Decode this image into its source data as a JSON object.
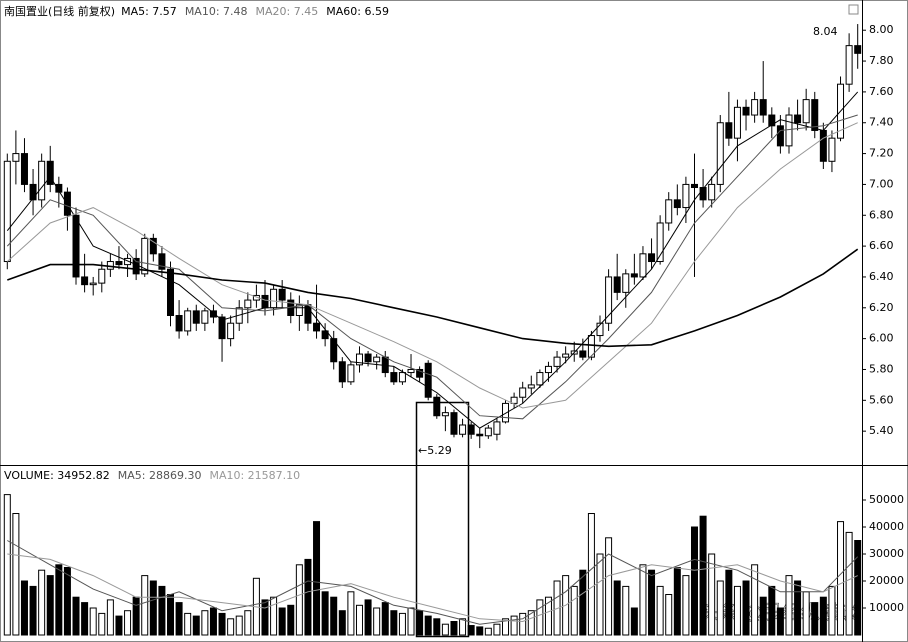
{
  "chart_data": {
    "type": "candlestick",
    "title": "南国置业(日线 前复权)",
    "legend": [
      {
        "label": "MA5: 7.57",
        "color": "#000000"
      },
      {
        "label": "MA10: 7.48",
        "color": "#555555"
      },
      {
        "label": "MA20: 7.45",
        "color": "#888888"
      },
      {
        "label": "MA60: 6.59",
        "color": "#000000"
      }
    ],
    "ylim": [
      5.2,
      8.17
    ],
    "yticks": [
      {
        "value": 5.4,
        "label": "5.40"
      },
      {
        "value": 5.6,
        "label": "5.60"
      },
      {
        "value": 5.8,
        "label": "5.80"
      },
      {
        "value": 6.0,
        "label": "6.00"
      },
      {
        "value": 6.2,
        "label": "6.20"
      },
      {
        "value": 6.4,
        "label": "6.40"
      },
      {
        "value": 6.6,
        "label": "6.60"
      },
      {
        "value": 6.8,
        "label": "6.80"
      },
      {
        "value": 7.0,
        "label": "7.00"
      },
      {
        "value": 7.2,
        "label": "7.20"
      },
      {
        "value": 7.4,
        "label": "7.40"
      },
      {
        "value": 7.6,
        "label": "7.60"
      },
      {
        "value": 7.8,
        "label": "7.80"
      },
      {
        "value": 8.0,
        "label": "8.00"
      }
    ],
    "up_color": "#ffffff",
    "down_color": "#000000",
    "candles": [
      [
        6.5,
        7.2,
        6.45,
        7.15
      ],
      [
        7.15,
        7.35,
        7.0,
        7.2
      ],
      [
        7.2,
        7.3,
        6.95,
        7.0
      ],
      [
        7.0,
        7.1,
        6.8,
        6.9
      ],
      [
        6.9,
        7.2,
        6.85,
        7.15
      ],
      [
        7.15,
        7.25,
        6.95,
        7.0
      ],
      [
        7.0,
        7.05,
        6.85,
        6.95
      ],
      [
        6.95,
        6.98,
        6.7,
        6.8
      ],
      [
        6.8,
        6.85,
        6.35,
        6.4
      ],
      [
        6.4,
        6.55,
        6.3,
        6.35
      ],
      [
        6.35,
        6.4,
        6.28,
        6.36
      ],
      [
        6.36,
        6.5,
        6.3,
        6.45
      ],
      [
        6.45,
        6.55,
        6.4,
        6.5
      ],
      [
        6.5,
        6.6,
        6.45,
        6.48
      ],
      [
        6.48,
        6.55,
        6.4,
        6.52
      ],
      [
        6.52,
        6.58,
        6.38,
        6.42
      ],
      [
        6.42,
        6.68,
        6.4,
        6.65
      ],
      [
        6.65,
        6.68,
        6.5,
        6.55
      ],
      [
        6.55,
        6.6,
        6.4,
        6.45
      ],
      [
        6.45,
        6.5,
        6.08,
        6.15
      ],
      [
        6.15,
        6.25,
        6.0,
        6.05
      ],
      [
        6.05,
        6.2,
        6.02,
        6.18
      ],
      [
        6.18,
        6.22,
        6.05,
        6.1
      ],
      [
        6.1,
        6.2,
        6.05,
        6.18
      ],
      [
        6.18,
        6.22,
        6.1,
        6.14
      ],
      [
        6.14,
        6.16,
        5.85,
        6.0
      ],
      [
        6.0,
        6.15,
        5.95,
        6.1
      ],
      [
        6.1,
        6.25,
        6.05,
        6.2
      ],
      [
        6.2,
        6.3,
        6.1,
        6.25
      ],
      [
        6.25,
        6.35,
        6.2,
        6.28
      ],
      [
        6.28,
        6.38,
        6.15,
        6.2
      ],
      [
        6.2,
        6.35,
        6.15,
        6.32
      ],
      [
        6.32,
        6.38,
        6.2,
        6.25
      ],
      [
        6.25,
        6.3,
        6.1,
        6.15
      ],
      [
        6.15,
        6.28,
        6.05,
        6.22
      ],
      [
        6.22,
        6.25,
        6.05,
        6.1
      ],
      [
        6.1,
        6.35,
        6.0,
        6.05
      ],
      [
        6.05,
        6.1,
        5.95,
        6.0
      ],
      [
        6.0,
        6.05,
        5.8,
        5.85
      ],
      [
        5.85,
        5.88,
        5.68,
        5.72
      ],
      [
        5.72,
        5.85,
        5.7,
        5.83
      ],
      [
        5.83,
        5.95,
        5.78,
        5.9
      ],
      [
        5.9,
        5.92,
        5.82,
        5.85
      ],
      [
        5.85,
        5.9,
        5.8,
        5.88
      ],
      [
        5.88,
        5.92,
        5.75,
        5.78
      ],
      [
        5.78,
        5.82,
        5.7,
        5.72
      ],
      [
        5.72,
        5.8,
        5.7,
        5.78
      ],
      [
        5.78,
        5.9,
        5.75,
        5.8
      ],
      [
        5.8,
        5.82,
        5.72,
        5.75
      ],
      [
        5.84,
        5.86,
        5.6,
        5.62
      ],
      [
        5.62,
        5.64,
        5.48,
        5.5
      ],
      [
        5.5,
        5.56,
        5.4,
        5.52
      ],
      [
        5.52,
        5.54,
        5.36,
        5.38
      ],
      [
        5.38,
        5.48,
        5.36,
        5.44
      ],
      [
        5.44,
        5.46,
        5.35,
        5.38
      ],
      [
        5.38,
        5.42,
        5.29,
        5.37
      ],
      [
        5.37,
        5.44,
        5.35,
        5.42
      ],
      [
        5.38,
        5.48,
        5.34,
        5.46
      ],
      [
        5.46,
        5.6,
        5.45,
        5.58
      ],
      [
        5.58,
        5.65,
        5.55,
        5.62
      ],
      [
        5.62,
        5.72,
        5.58,
        5.68
      ],
      [
        5.68,
        5.76,
        5.64,
        5.7
      ],
      [
        5.7,
        5.8,
        5.68,
        5.78
      ],
      [
        5.78,
        5.85,
        5.72,
        5.82
      ],
      [
        5.82,
        5.92,
        5.78,
        5.88
      ],
      [
        5.88,
        5.95,
        5.84,
        5.9
      ],
      [
        5.9,
        5.98,
        5.85,
        5.92
      ],
      [
        5.92,
        6.0,
        5.86,
        5.88
      ],
      [
        5.88,
        6.05,
        5.86,
        6.02
      ],
      [
        6.02,
        6.15,
        5.98,
        6.1
      ],
      [
        6.1,
        6.45,
        6.05,
        6.4
      ],
      [
        6.4,
        6.55,
        6.25,
        6.3
      ],
      [
        6.3,
        6.45,
        6.2,
        6.42
      ],
      [
        6.42,
        6.55,
        6.35,
        6.4
      ],
      [
        6.4,
        6.6,
        6.38,
        6.55
      ],
      [
        6.55,
        6.65,
        6.45,
        6.5
      ],
      [
        6.5,
        6.8,
        6.48,
        6.75
      ],
      [
        6.75,
        6.95,
        6.7,
        6.9
      ],
      [
        6.9,
        7.0,
        6.8,
        6.85
      ],
      [
        6.85,
        7.05,
        6.75,
        7.0
      ],
      [
        7.0,
        7.2,
        6.4,
        6.98
      ],
      [
        6.98,
        7.1,
        6.85,
        6.9
      ],
      [
        6.9,
        7.05,
        6.85,
        7.0
      ],
      [
        7.0,
        7.45,
        6.95,
        7.4
      ],
      [
        7.4,
        7.6,
        7.25,
        7.3
      ],
      [
        7.3,
        7.55,
        7.15,
        7.5
      ],
      [
        7.5,
        7.55,
        7.35,
        7.45
      ],
      [
        7.45,
        7.6,
        7.4,
        7.55
      ],
      [
        7.55,
        7.8,
        7.4,
        7.45
      ],
      [
        7.45,
        7.5,
        7.3,
        7.38
      ],
      [
        7.38,
        7.45,
        7.2,
        7.25
      ],
      [
        7.25,
        7.5,
        7.2,
        7.45
      ],
      [
        7.45,
        7.55,
        7.35,
        7.4
      ],
      [
        7.4,
        7.62,
        7.35,
        7.55
      ],
      [
        7.55,
        7.6,
        7.3,
        7.35
      ],
      [
        7.35,
        7.4,
        7.1,
        7.15
      ],
      [
        7.15,
        7.35,
        7.08,
        7.3
      ],
      [
        7.3,
        7.7,
        7.28,
        7.65
      ],
      [
        7.65,
        7.98,
        7.6,
        7.9
      ],
      [
        7.9,
        8.04,
        7.75,
        7.85
      ]
    ],
    "moving_averages": {
      "x": [
        0,
        5,
        10,
        15,
        20,
        25,
        30,
        35,
        40,
        45,
        50,
        55,
        60,
        65,
        70,
        75,
        80,
        85,
        90,
        95,
        99
      ],
      "series": [
        {
          "name": "MA5",
          "color": "#000000",
          "width": 1,
          "values": [
            6.7,
            7.05,
            6.6,
            6.48,
            6.35,
            6.12,
            6.2,
            6.2,
            5.85,
            5.82,
            5.65,
            5.42,
            5.58,
            5.85,
            6.15,
            6.45,
            6.9,
            7.25,
            7.42,
            7.35,
            7.6
          ]
        },
        {
          "name": "MA10",
          "color": "#555555",
          "width": 1,
          "values": [
            6.6,
            6.9,
            6.8,
            6.5,
            6.45,
            6.2,
            6.18,
            6.22,
            6.0,
            5.85,
            5.75,
            5.5,
            5.48,
            5.72,
            6.0,
            6.3,
            6.75,
            7.05,
            7.35,
            7.38,
            7.45
          ]
        },
        {
          "name": "MA20",
          "color": "#999999",
          "width": 1,
          "values": [
            6.5,
            6.75,
            6.85,
            6.7,
            6.52,
            6.35,
            6.25,
            6.22,
            6.1,
            5.98,
            5.85,
            5.68,
            5.55,
            5.6,
            5.85,
            6.1,
            6.5,
            6.85,
            7.1,
            7.3,
            7.4
          ]
        },
        {
          "name": "MA60",
          "color": "#000000",
          "width": 1.6,
          "values": [
            6.38,
            6.48,
            6.48,
            6.45,
            6.42,
            6.38,
            6.36,
            6.3,
            6.26,
            6.2,
            6.14,
            6.07,
            6.0,
            5.97,
            5.95,
            5.96,
            6.05,
            6.15,
            6.27,
            6.42,
            6.58
          ]
        }
      ]
    },
    "annotations": [
      "8.04",
      "←5.29"
    ],
    "volume": {
      "legend": [
        {
          "label": "VOLUME: 34952.82",
          "color": "#000000"
        },
        {
          "label": "MA5: 28869.30",
          "color": "#555555"
        },
        {
          "label": "MA10: 21587.10",
          "color": "#999999"
        }
      ],
      "ylim": [
        0,
        56300
      ],
      "yticks": [
        10000,
        20000,
        30000,
        40000,
        50000
      ],
      "values": [
        52000,
        45000,
        20000,
        18000,
        24000,
        22000,
        26000,
        25000,
        14000,
        12000,
        10000,
        8000,
        13000,
        7000,
        9000,
        14000,
        22000,
        20000,
        18000,
        15000,
        12000,
        8000,
        7000,
        9000,
        10000,
        8000,
        6000,
        7000,
        9000,
        21000,
        13000,
        14000,
        10000,
        11000,
        26000,
        28000,
        42000,
        16000,
        14000,
        9000,
        16000,
        11000,
        13000,
        10000,
        12000,
        9000,
        8000,
        10000,
        9000,
        7000,
        6000,
        4000,
        5000,
        6000,
        3500,
        3000,
        2500,
        4000,
        6000,
        7000,
        8000,
        9000,
        13000,
        14000,
        20000,
        22000,
        18000,
        24000,
        45000,
        30000,
        36000,
        20000,
        18000,
        10000,
        26000,
        24000,
        18000,
        15000,
        25000,
        22000,
        40000,
        44000,
        30000,
        20000,
        24000,
        18000,
        20000,
        26000,
        14000,
        18000,
        10000,
        22000,
        20000,
        16000,
        12000,
        14000,
        18000,
        42000,
        38000,
        35000
      ],
      "moving_averages": {
        "x": [
          0,
          5,
          10,
          15,
          20,
          25,
          30,
          35,
          40,
          45,
          50,
          55,
          60,
          65,
          70,
          75,
          80,
          85,
          90,
          95,
          99
        ],
        "series": [
          {
            "name": "MA5",
            "color": "#555555",
            "width": 1,
            "values": [
              35000,
              26000,
              17000,
              11000,
              16000,
              9000,
              12000,
              20000,
              18000,
              11000,
              8000,
              4000,
              6000,
              16000,
              30000,
              22000,
              28000,
              24000,
              16000,
              16000,
              29000
            ]
          },
          {
            "name": "MA10",
            "color": "#999999",
            "width": 1,
            "values": [
              30000,
              28000,
              22000,
              14000,
              14000,
              12000,
              10000,
              16000,
              19000,
              14000,
              10000,
              6000,
              5000,
              11000,
              22000,
              26000,
              24000,
              26000,
              20000,
              16000,
              22000
            ]
          }
        ]
      }
    },
    "watermark": "头条 @股经纵横谈"
  }
}
